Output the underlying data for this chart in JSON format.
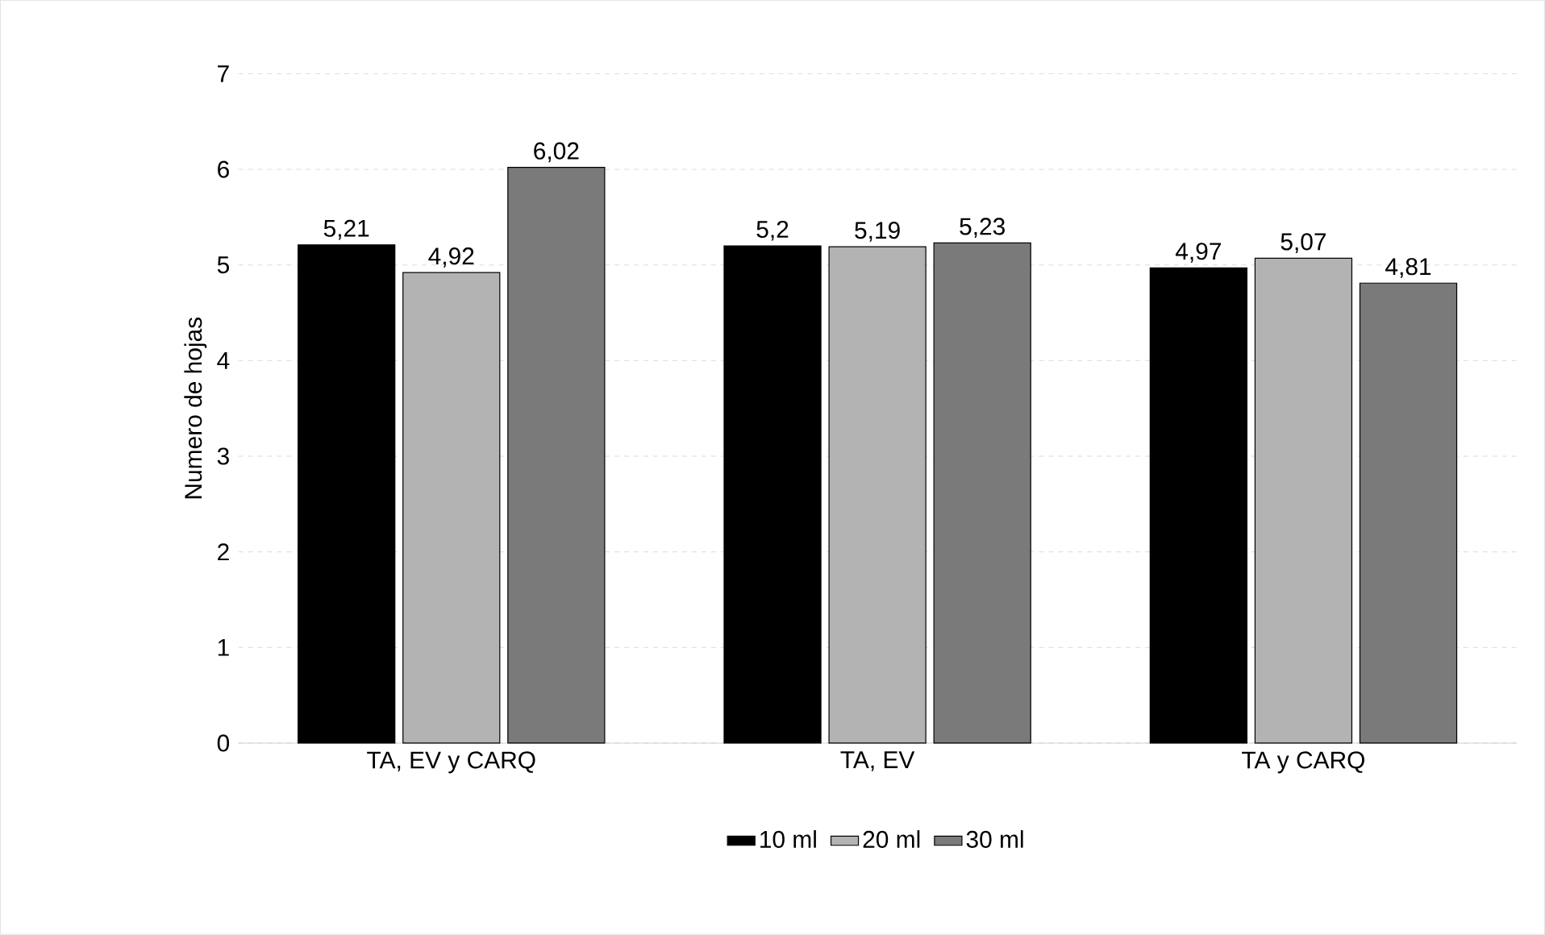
{
  "chart_data": {
    "type": "bar",
    "ylabel": "Numero de hojas",
    "categories": [
      "TA, EV y CARQ",
      "TA, EV",
      "TA y CARQ"
    ],
    "series": [
      {
        "name": "10 ml",
        "color": "#000000",
        "values": [
          5.21,
          5.2,
          4.97
        ],
        "value_labels": [
          "5,21",
          "5,2",
          "4,97"
        ]
      },
      {
        "name": "20 ml",
        "color": "#b3b3b3",
        "values": [
          4.92,
          5.19,
          5.07
        ],
        "value_labels": [
          "4,92",
          "5,19",
          "5,07"
        ]
      },
      {
        "name": "30 ml",
        "color": "#7a7a7a",
        "values": [
          6.02,
          5.23,
          4.81
        ],
        "value_labels": [
          "6,02",
          "5,23",
          "4,81"
        ]
      }
    ],
    "ylim": [
      0,
      7
    ],
    "yticks": [
      0,
      1,
      2,
      3,
      4,
      5,
      6,
      7
    ],
    "grid": "y",
    "legend": "bottom"
  }
}
